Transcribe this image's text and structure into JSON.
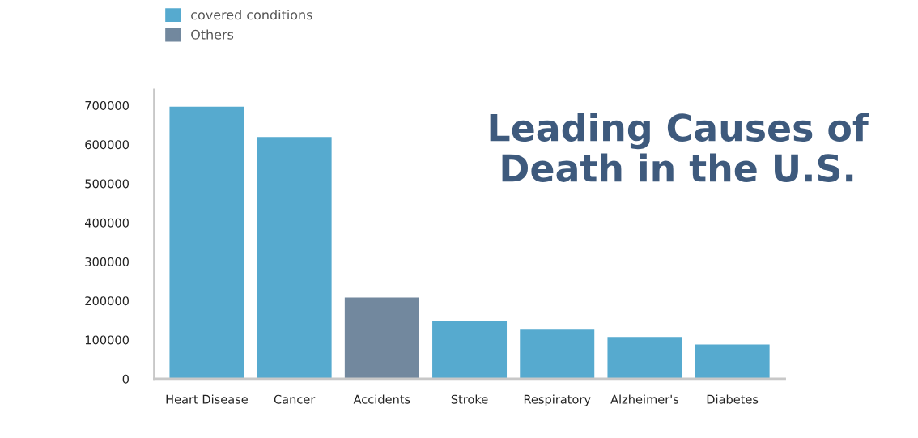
{
  "chart_data": {
    "type": "bar",
    "title": "Leading Causes of\nDeath in the U.S.",
    "categories": [
      "Heart Disease",
      "Cancer",
      "Accidents",
      "Stroke",
      "Respiratory",
      "Alzheimer's",
      "Diabetes"
    ],
    "series": [
      {
        "name": "covered conditions",
        "color": "#56aacf",
        "values": [
          697000,
          619000,
          null,
          148000,
          128000,
          107000,
          88000
        ]
      },
      {
        "name": "Others",
        "color": "#72889e",
        "values": [
          null,
          null,
          208000,
          null,
          null,
          null,
          null
        ]
      }
    ],
    "ylim": [
      0,
      740000
    ],
    "yticks": [
      0,
      100000,
      200000,
      300000,
      400000,
      500000,
      600000,
      700000
    ],
    "grid": false,
    "legend": "top left"
  }
}
